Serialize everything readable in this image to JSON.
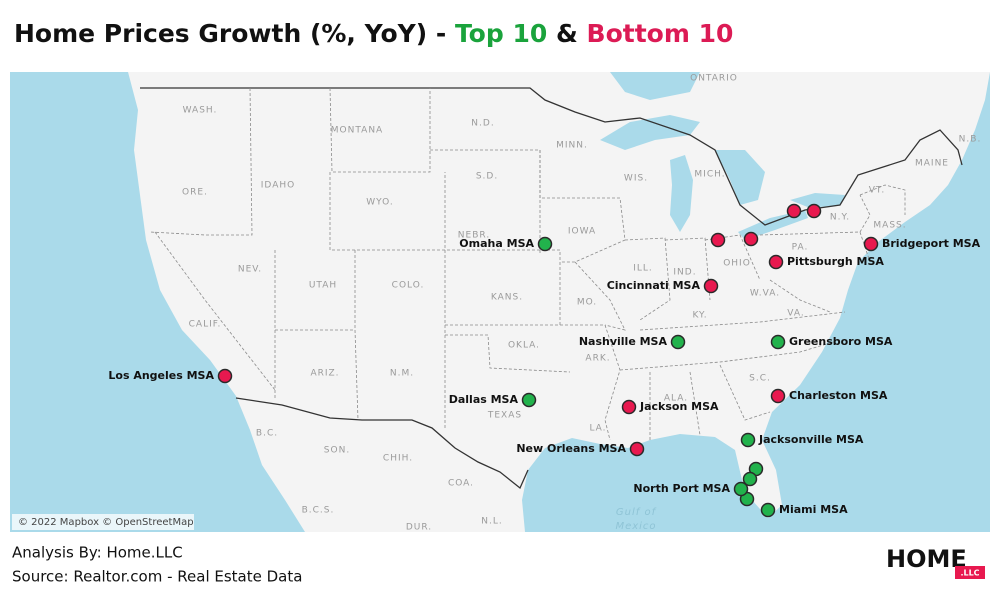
{
  "title": {
    "prefix": "Home Prices Growth (%, YoY) -",
    "top": "Top 10",
    "amp": "&",
    "bottom": "Bottom 10"
  },
  "map": {
    "region_labels": [
      "ONTARIO",
      "WASH.",
      "MONTANA",
      "N.D.",
      "MINN.",
      "ORE.",
      "IDAHO",
      "WYO.",
      "S.D.",
      "WIS.",
      "MICH.",
      "MAINE",
      "N.B.",
      "VT.",
      "N.Y.",
      "MASS.",
      "NEBR.",
      "IOWA",
      "NEV.",
      "UTAH",
      "COLO.",
      "ILL.",
      "IND.",
      "OHIO",
      "PA.",
      "KANS.",
      "MO.",
      "W.VA.",
      "VA.",
      "KY.",
      "CALIF.",
      "OKLA.",
      "ARK.",
      "ARIZ.",
      "N.M.",
      "S.C.",
      "ALA.",
      "TEXAS",
      "LA.",
      "B.C.",
      "SON.",
      "CHIH.",
      "COA.",
      "B.C.S.",
      "DUR.",
      "N.L."
    ],
    "water_labels": [
      "Gulf of",
      "Mexico"
    ],
    "attribution": "© 2022 Mapbox © OpenStreetMap",
    "markers": [
      "Omaha MSA",
      "Los Angeles MSA",
      "Dallas MSA",
      "Nashville MSA",
      "Greensboro MSA",
      "Charleston MSA",
      "Jackson MSA",
      "New Orleans MSA",
      "Jacksonville MSA",
      "North Port MSA",
      "Miami MSA",
      "Cincinnati MSA",
      "Pittsburgh MSA",
      "Bridgeport MSA"
    ]
  },
  "footer": {
    "analysis": "Analysis By: Home.LLC",
    "source": "Source: Realtor.com - Real Estate Data"
  },
  "logo": {
    "main": "HOME",
    "suffix": ".LLC"
  }
}
